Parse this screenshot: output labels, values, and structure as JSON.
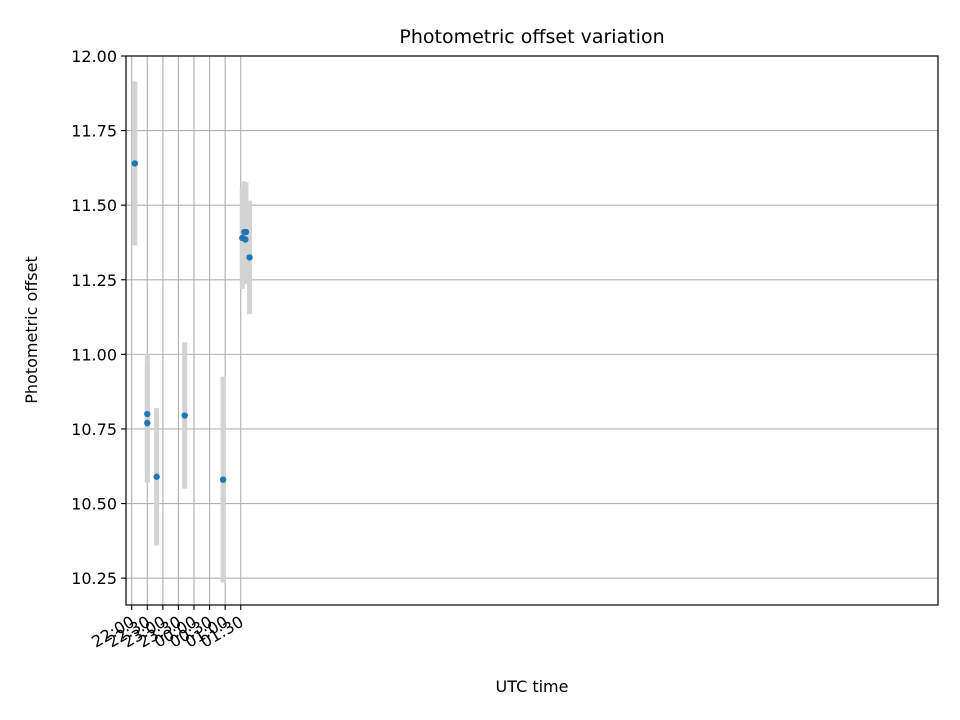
{
  "chart_data": {
    "type": "scatter",
    "title": "Photometric offset variation",
    "xlabel": "UTC time",
    "ylabel": "Photometric offset",
    "x_axis_kind": "time",
    "x_range": [
      "21:49",
      "23:53 +1d"
    ],
    "x_ticks": [
      "22:00",
      "22:30",
      "23:00",
      "23:30",
      "00:00",
      "00:30",
      "01:00",
      "01:30"
    ],
    "ylim": [
      10.16,
      12.0
    ],
    "y_ticks": [
      "10.25",
      "10.50",
      "10.75",
      "11.00",
      "11.25",
      "11.50",
      "11.75",
      "12.00"
    ],
    "grid": true,
    "point_color": "#1f77b4",
    "errorbar_color": "#d3d3d3",
    "points": [
      {
        "time": "22:06",
        "value": 11.64,
        "error": 0.275
      },
      {
        "time": "22:30",
        "value": 10.8,
        "error": 0.2
      },
      {
        "time": "22:30",
        "value": 10.77,
        "error": 0.2
      },
      {
        "time": "22:48",
        "value": 10.59,
        "error": 0.23
      },
      {
        "time": "23:42",
        "value": 10.795,
        "error": 0.245
      },
      {
        "time": "00:56",
        "value": 10.58,
        "error": 0.345
      },
      {
        "time": "01:33",
        "value": 11.39,
        "error": 0.17
      },
      {
        "time": "01:37",
        "value": 11.41,
        "error": 0.17
      },
      {
        "time": "01:39",
        "value": 11.385,
        "error": 0.15
      },
      {
        "time": "01:40",
        "value": 11.41,
        "error": 0.165
      },
      {
        "time": "01:47",
        "value": 11.325,
        "error": 0.19
      }
    ]
  }
}
